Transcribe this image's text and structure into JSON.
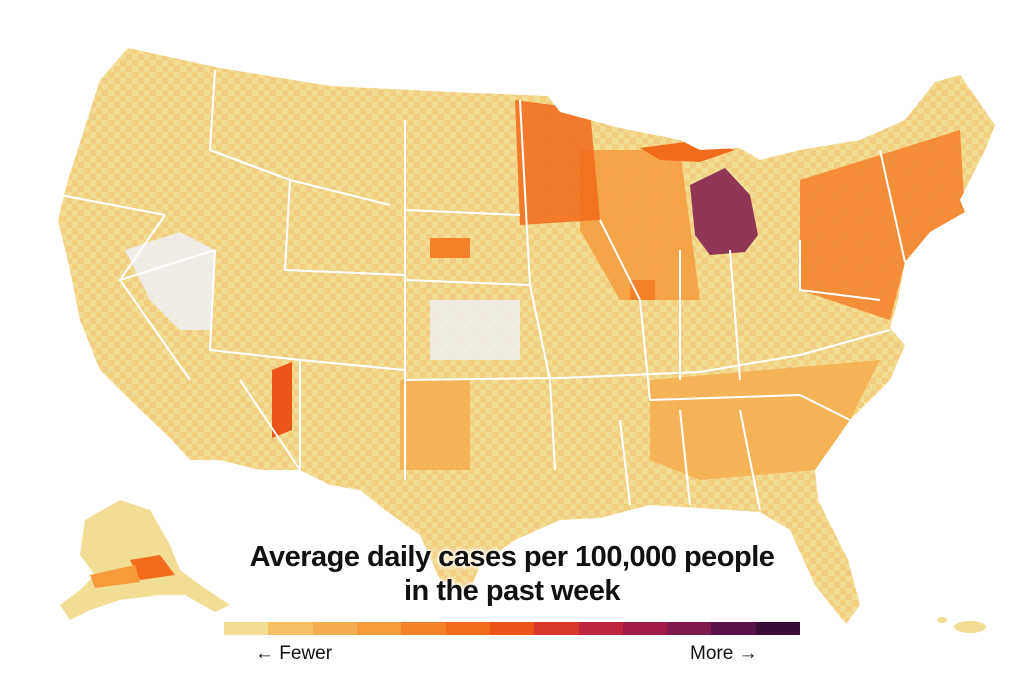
{
  "title": {
    "line1": "Average daily cases per 100,000 people",
    "line2": "in the past week"
  },
  "legend": {
    "fewer_label": "← Fewer",
    "more_label": "More →",
    "colors": [
      "#f2dd95",
      "#f6c062",
      "#f6ad4f",
      "#f59b3c",
      "#f5802a",
      "#f26a1c",
      "#eb5519",
      "#d8372b",
      "#bf2540",
      "#a11d48",
      "#7f1a4d",
      "#5a1348",
      "#3a0d34"
    ]
  },
  "map": {
    "base_color": "#f2dd95",
    "no_data_color": "#eeeeee",
    "border_color": "#ffffff",
    "regions": [
      {
        "name": "michigan",
        "level": 10
      },
      {
        "name": "minnesota",
        "level": 5
      },
      {
        "name": "northeast",
        "level": 4
      },
      {
        "name": "upper-midwest",
        "level": 3
      },
      {
        "name": "alaska",
        "level": 1
      },
      {
        "name": "hawaii",
        "level": 1
      },
      {
        "name": "southeast",
        "level": 2
      },
      {
        "name": "west-coast",
        "level": 0
      },
      {
        "name": "great-plains",
        "level": 2
      }
    ]
  }
}
